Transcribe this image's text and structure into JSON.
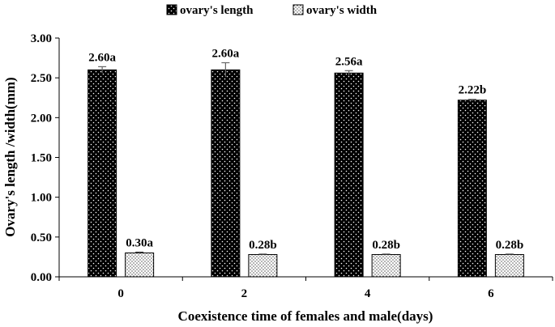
{
  "chart_data": {
    "type": "bar",
    "categories": [
      "0",
      "2",
      "4",
      "6"
    ],
    "series": [
      {
        "name": "ovary's length",
        "values": [
          2.6,
          2.6,
          2.56,
          2.22
        ],
        "errors": [
          0.04,
          0.09,
          0.03,
          0.01
        ],
        "labels": [
          "2.60a",
          "2.60a",
          "2.56a",
          "2.22b"
        ],
        "pattern": "dark-dotted"
      },
      {
        "name": "ovary's width",
        "values": [
          0.3,
          0.28,
          0.28,
          0.28
        ],
        "errors": [
          0.01,
          0.005,
          0.005,
          0.005
        ],
        "labels": [
          "0.30a",
          "0.28b",
          "0.28b",
          "0.28b"
        ],
        "pattern": "light-dotted"
      }
    ],
    "xlabel": "Coexistence time of females and male(days)",
    "ylabel": "Ovary's length /width(mm)",
    "ylim": [
      0,
      3.0
    ],
    "yticks": [
      "0.00",
      "0.50",
      "1.00",
      "1.50",
      "2.00",
      "2.50",
      "3.00"
    ],
    "grid": false,
    "legend": "top-center",
    "error_bars": true
  }
}
